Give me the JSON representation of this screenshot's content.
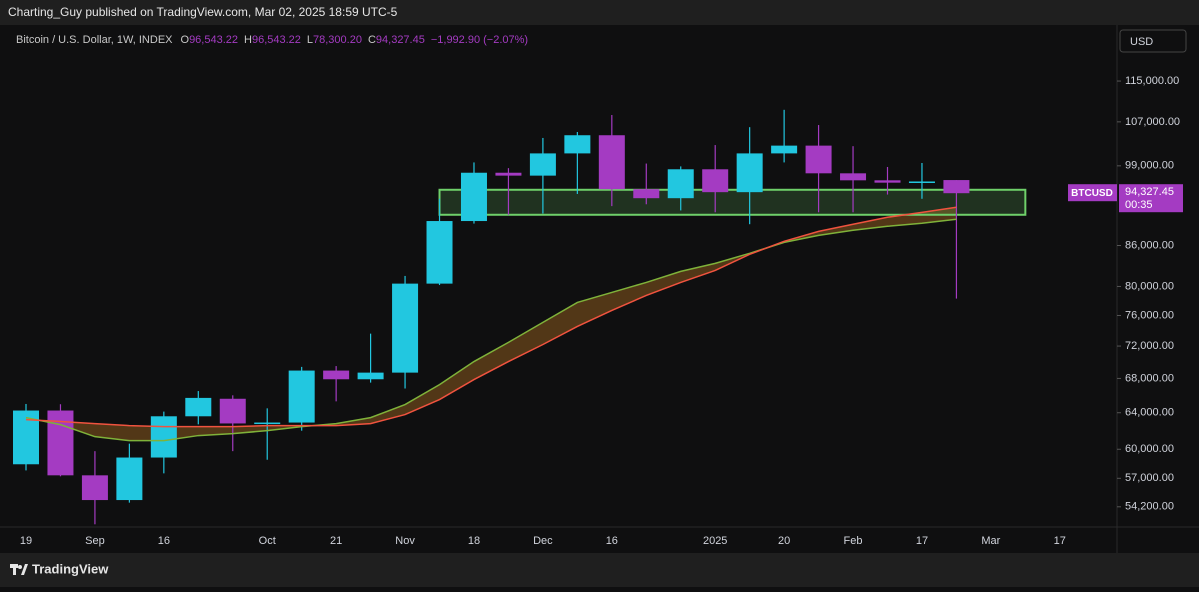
{
  "published_by": "Charting_Guy published on TradingView.com, Mar 02, 2025 18:59 UTC-5",
  "brand": "TradingView",
  "chart_data": {
    "type": "candlestick",
    "title": "Bitcoin / U.S. Dollar, 1W, INDEX",
    "ohlc_legend": [
      {
        "key": "O",
        "value": "96,543.22"
      },
      {
        "key": "H",
        "value": "96,543.22"
      },
      {
        "key": "L",
        "value": "78,300.20"
      },
      {
        "key": "C",
        "value": "94,327.45"
      }
    ],
    "change": "−1,992.90 (−2.07%)",
    "currency": "USD",
    "symbol": "BTCUSD",
    "last_price_label": "94,327.45",
    "countdown": "00:35",
    "categories": [
      "19",
      null,
      "Sep",
      null,
      "16",
      null,
      null,
      "Oct",
      null,
      "21",
      null,
      "Nov",
      null,
      "18",
      null,
      "Dec",
      null,
      "16",
      null,
      null,
      "2025",
      null,
      "20",
      null,
      "Feb",
      null,
      "17",
      null,
      "Mar",
      null,
      "17"
    ],
    "open": [
      58430,
      64250,
      57300,
      54850,
      59130,
      63600,
      65600,
      62800,
      62900,
      68950,
      67900,
      68700,
      80400,
      89800,
      97800,
      97300,
      101200,
      104500,
      95000,
      93500,
      98400,
      94500,
      101200,
      102600,
      97700,
      96500,
      96100,
      96543.22,
      null,
      null,
      null
    ],
    "high": [
      65000,
      64970,
      59800,
      60600,
      64130,
      66500,
      66000,
      64500,
      69400,
      69500,
      73600,
      81500,
      93400,
      99600,
      98600,
      104000,
      105100,
      108300,
      99400,
      98900,
      102700,
      106000,
      109300,
      106400,
      102500,
      98800,
      99500,
      96543.22,
      null,
      null,
      null
    ],
    "low": [
      57800,
      57200,
      52550,
      54600,
      57500,
      62700,
      59800,
      58900,
      62000,
      65300,
      67500,
      66800,
      80200,
      89400,
      90800,
      91000,
      94200,
      92200,
      92500,
      91500,
      91200,
      89300,
      99600,
      91200,
      91200,
      94100,
      93400,
      78300.2,
      null,
      null,
      null
    ],
    "close": [
      64250,
      57300,
      54850,
      59130,
      63600,
      65700,
      62800,
      62900,
      68950,
      67900,
      68700,
      80400,
      89800,
      97800,
      97300,
      101200,
      104500,
      95000,
      93500,
      98400,
      94500,
      101200,
      102600,
      97700,
      96500,
      96100,
      96300,
      94327.45,
      null,
      null,
      null
    ],
    "up_color": "#22c7e0",
    "down_color": "#a43bc2",
    "lines": [
      {
        "color": "#7fb23a",
        "values": [
          63450,
          62670,
          61350,
          60920,
          60920,
          61470,
          61680,
          62010,
          62450,
          62780,
          63450,
          64930,
          67260,
          70060,
          72470,
          75080,
          77770,
          79160,
          80570,
          82160,
          83330,
          84820,
          86480,
          87560,
          88350,
          88970,
          89450,
          90080,
          null,
          null,
          null
        ]
      },
      {
        "color": "#f0533f",
        "values": [
          63230,
          63010,
          62780,
          62560,
          62450,
          62450,
          62450,
          62560,
          62560,
          62560,
          62780,
          63790,
          65510,
          67860,
          70060,
          72200,
          74540,
          76680,
          78740,
          80570,
          82300,
          84670,
          86640,
          88180,
          89290,
          90400,
          91190,
          92010,
          null,
          null,
          null
        ]
      }
    ],
    "band_color": "#8a5a1e",
    "zone": {
      "start": 12,
      "end": 29,
      "low": 90800,
      "high": 94900,
      "color": "#6fd06a"
    },
    "log_scale": true,
    "ylim": [
      52300,
      126300
    ],
    "yticks": [
      {
        "value": 115000,
        "label": "115,000.00"
      },
      {
        "value": 107000,
        "label": "107,000.00"
      },
      {
        "value": 99000,
        "label": "99,000.00"
      },
      {
        "value": 86000,
        "label": "86,000.00"
      },
      {
        "value": 80000,
        "label": "80,000.00"
      },
      {
        "value": 76000,
        "label": "76,000.00"
      },
      {
        "value": 72000,
        "label": "72,000.00"
      },
      {
        "value": 68000,
        "label": "68,000.00"
      },
      {
        "value": 64000,
        "label": "64,000.00"
      },
      {
        "value": 60000,
        "label": "60,000.00"
      },
      {
        "value": 57000,
        "label": "57,000.00"
      },
      {
        "value": 54200,
        "label": "54,200.00"
      }
    ],
    "grid": false
  }
}
